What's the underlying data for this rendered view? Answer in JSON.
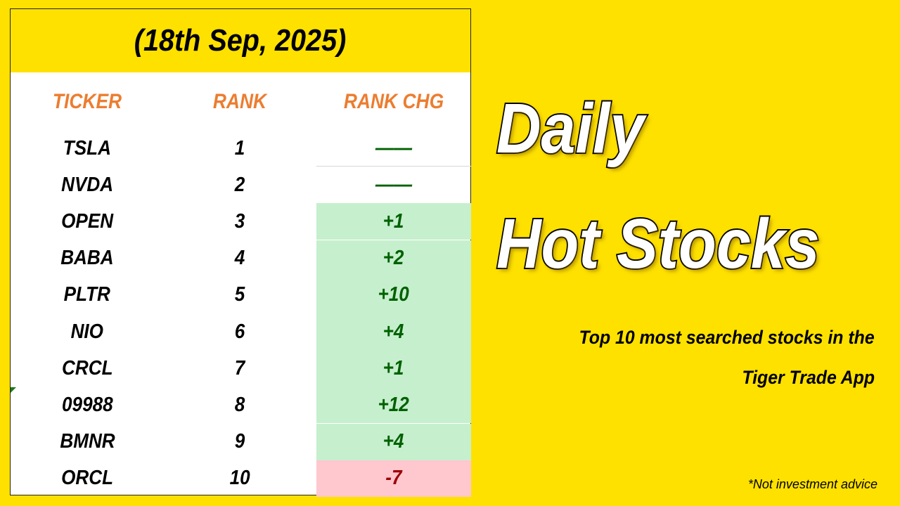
{
  "table": {
    "date": "(18th Sep, 2025)",
    "headers": [
      "TICKER",
      "RANK",
      "RANK CHG"
    ],
    "rows": [
      {
        "ticker": "TSLA",
        "rank": "1",
        "change": "——",
        "trend": "same"
      },
      {
        "ticker": "NVDA",
        "rank": "2",
        "change": "——",
        "trend": "same"
      },
      {
        "ticker": "OPEN",
        "rank": "3",
        "change": "+1",
        "trend": "up"
      },
      {
        "ticker": "BABA",
        "rank": "4",
        "change": "+2",
        "trend": "up"
      },
      {
        "ticker": "PLTR",
        "rank": "5",
        "change": "+10",
        "trend": "up"
      },
      {
        "ticker": "NIO",
        "rank": "6",
        "change": "+4",
        "trend": "up"
      },
      {
        "ticker": "CRCL",
        "rank": "7",
        "change": "+1",
        "trend": "up"
      },
      {
        "ticker": "09988",
        "rank": "8",
        "change": "+12",
        "trend": "up"
      },
      {
        "ticker": "BMNR",
        "rank": "9",
        "change": "+4",
        "trend": "up"
      },
      {
        "ticker": "ORCL",
        "rank": "10",
        "change": "-7",
        "trend": "down"
      }
    ]
  },
  "colors": {
    "background": "#ffe100",
    "header_text": "#ec7d30",
    "up_bg": "#c6efce",
    "up_text": "#006100",
    "down_bg": "#ffc7ce",
    "down_text": "#9c0006",
    "same_text": "#006100"
  },
  "title": {
    "line1": "Daily",
    "line2": "Hot Stocks"
  },
  "subtitle": {
    "line1": "Top 10 most searched  stocks in the",
    "line2": "Tiger Trade App"
  },
  "disclaimer": "*Not investment advice"
}
